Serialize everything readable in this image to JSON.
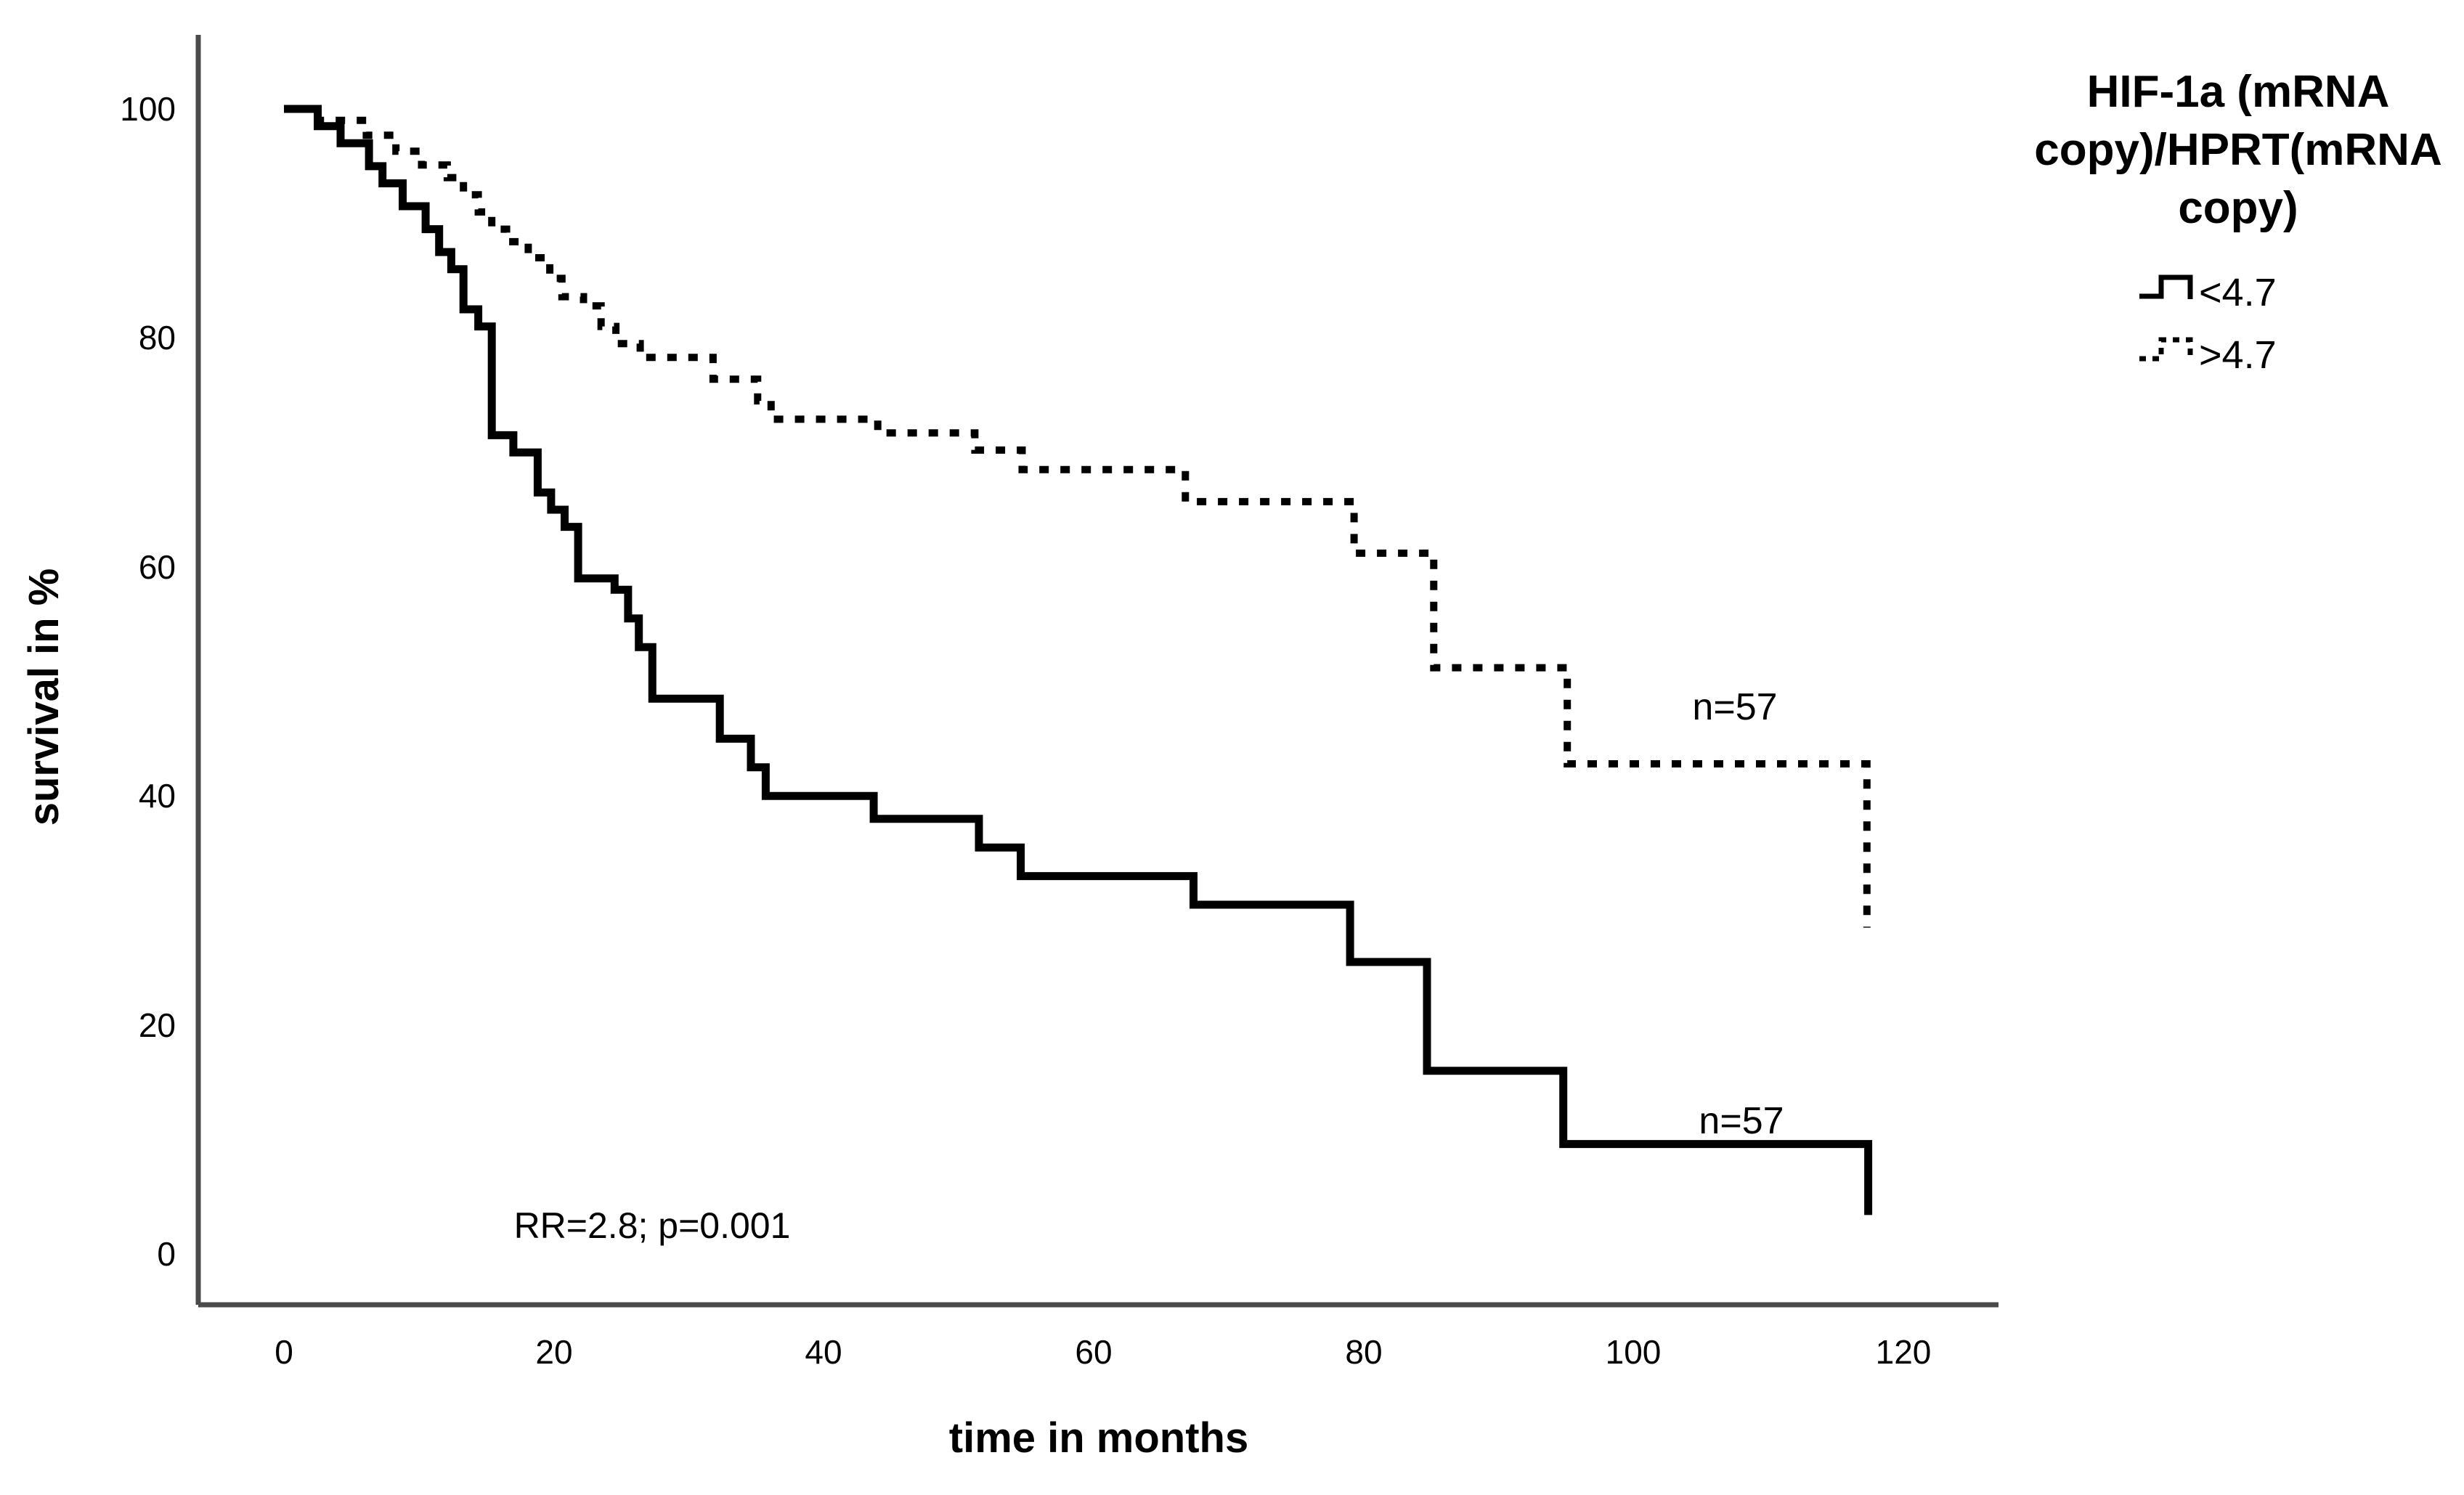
{
  "colors": {
    "curve": "#000000",
    "axis": "#4a4a4a",
    "text": "#000000",
    "background": "#ffffff"
  },
  "y_axis": {
    "label": "survival in %",
    "ticks": [
      0,
      20,
      40,
      60,
      80,
      100
    ],
    "range": [
      0,
      100
    ]
  },
  "x_axis": {
    "label": "time in months",
    "ticks": [
      0,
      20,
      40,
      60,
      80,
      100,
      120
    ],
    "range": [
      0,
      120
    ]
  },
  "legend": {
    "title_lines": [
      "HIF-1a (mRNA",
      "copy)/HPRT(mRNA",
      "copy)"
    ],
    "entries": [
      {
        "label": "<4.7",
        "style": "solid"
      },
      {
        "label": ">4.7",
        "style": "dashed"
      }
    ]
  },
  "annotations": [
    {
      "text": "RR=2.8; p=0.001",
      "t": 27.3,
      "p": 1.4,
      "size": 50,
      "weight": "normal"
    },
    {
      "text": "n=57",
      "t": 107.5,
      "p": 46.7,
      "size": 52,
      "weight": "normal"
    },
    {
      "text": "n=57",
      "t": 108.0,
      "p": 10.5,
      "size": 52,
      "weight": "normal"
    }
  ],
  "chart_data": {
    "type": "line",
    "subtype": "kaplan-meier-step",
    "title": "",
    "xlabel": "time in months",
    "ylabel": "survival in %",
    "xlim": [
      0,
      120
    ],
    "ylim": [
      0,
      100
    ],
    "grid": false,
    "legend_position": "top-right-outside",
    "series": [
      {
        "name": "<4.7",
        "line": "solid",
        "n_label": "n=57",
        "points": [
          [
            0,
            100
          ],
          [
            2.5,
            98.5
          ],
          [
            4.2,
            97
          ],
          [
            6.3,
            95
          ],
          [
            7.3,
            93.5
          ],
          [
            8.8,
            91.5
          ],
          [
            10.5,
            89.5
          ],
          [
            11.5,
            87.5
          ],
          [
            12.4,
            86
          ],
          [
            13.3,
            82.5
          ],
          [
            14.4,
            81
          ],
          [
            15.4,
            71.5
          ],
          [
            17,
            70
          ],
          [
            18.8,
            66.5
          ],
          [
            19.8,
            65
          ],
          [
            20.8,
            63.5
          ],
          [
            21.8,
            59
          ],
          [
            24.5,
            58
          ],
          [
            25.5,
            55.5
          ],
          [
            26.3,
            53
          ],
          [
            27.3,
            48.5
          ],
          [
            32.3,
            45
          ],
          [
            34.6,
            42.5
          ],
          [
            35.7,
            40
          ],
          [
            43.7,
            38
          ],
          [
            51.5,
            35.5
          ],
          [
            54.6,
            33
          ],
          [
            67.4,
            30.5
          ],
          [
            79,
            25.5
          ],
          [
            84.7,
            16
          ],
          [
            94.8,
            9.6
          ],
          [
            117.4,
            3.4
          ]
        ]
      },
      {
        "name": ">4.7",
        "line": "dashed",
        "n_label": "n=57",
        "points": [
          [
            0,
            100
          ],
          [
            2.5,
            99
          ],
          [
            6.1,
            97.7
          ],
          [
            8.3,
            96.3
          ],
          [
            10.2,
            95.1
          ],
          [
            12.1,
            94
          ],
          [
            13.3,
            92.5
          ],
          [
            14.4,
            91
          ],
          [
            15.4,
            89.5
          ],
          [
            16.5,
            88.4
          ],
          [
            18.1,
            87
          ],
          [
            19.7,
            85.2
          ],
          [
            20.6,
            83.6
          ],
          [
            22.2,
            82.8
          ],
          [
            23.5,
            81
          ],
          [
            24.6,
            79.5
          ],
          [
            26.4,
            78.3
          ],
          [
            31.8,
            76.4
          ],
          [
            35.1,
            74.5
          ],
          [
            36.1,
            72.9
          ],
          [
            44,
            71.7
          ],
          [
            51.2,
            70.2
          ],
          [
            54.7,
            68.5
          ],
          [
            66.8,
            65.7
          ],
          [
            79.3,
            61.2
          ],
          [
            85.2,
            51.2
          ],
          [
            95.1,
            42.8
          ],
          [
            117.3,
            28.5
          ]
        ]
      }
    ]
  }
}
